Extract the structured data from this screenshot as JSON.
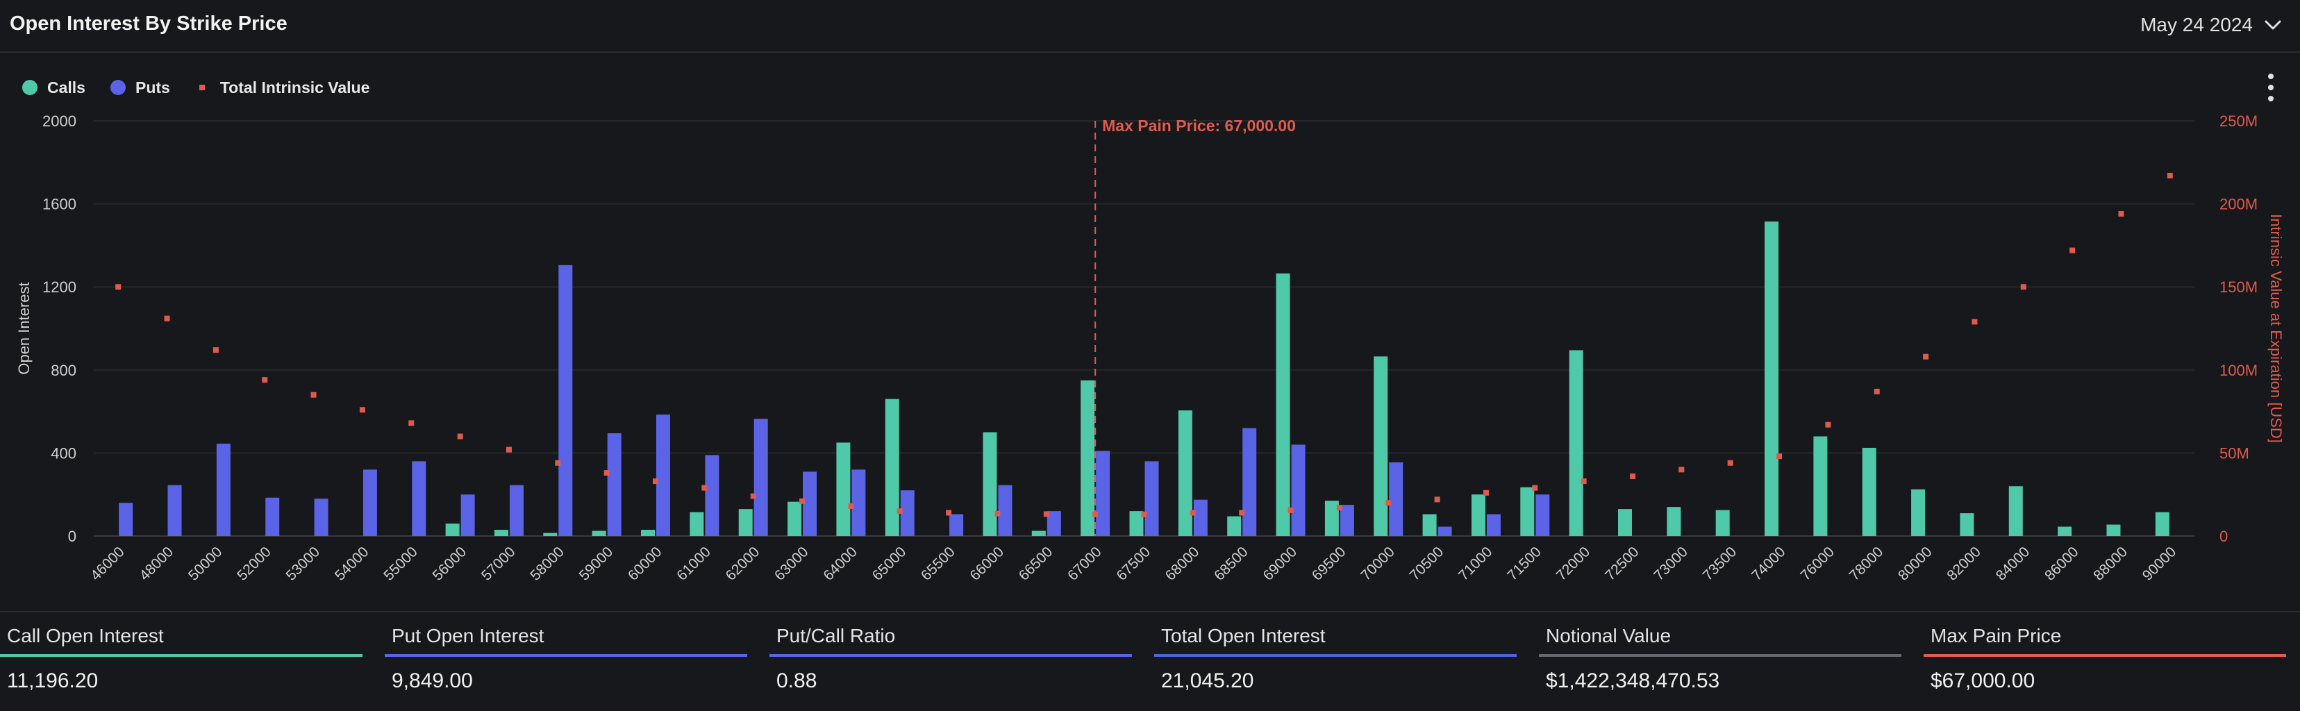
{
  "header": {
    "title": "Open Interest By Strike Price",
    "date": "May 24 2024"
  },
  "legend": [
    {
      "label": "Calls",
      "color": "#4fc9a8",
      "marker": "circle"
    },
    {
      "label": "Puts",
      "color": "#5b63e6",
      "marker": "circle"
    },
    {
      "label": "Total Intrinsic Value",
      "color": "#e05a50",
      "marker": "square"
    }
  ],
  "chart_data": {
    "type": "bar",
    "ylabel": "Open Interest",
    "y2label": "Intrinsic Value at Expiration [USD]",
    "ylim": [
      0,
      2000
    ],
    "yticks": [
      "0",
      "400",
      "800",
      "1200",
      "1600",
      "2000"
    ],
    "y2lim": [
      0,
      250000000
    ],
    "y2ticks": [
      "0",
      "50M",
      "100M",
      "150M",
      "200M",
      "250M"
    ],
    "grid": true,
    "legend": "top-left",
    "categories": [
      "46000",
      "48000",
      "50000",
      "52000",
      "53000",
      "54000",
      "55000",
      "56000",
      "57000",
      "58000",
      "59000",
      "60000",
      "61000",
      "62000",
      "63000",
      "64000",
      "65000",
      "65500",
      "66000",
      "66500",
      "67000",
      "67500",
      "68000",
      "68500",
      "69000",
      "69500",
      "70000",
      "70500",
      "71000",
      "71500",
      "72000",
      "72500",
      "73000",
      "73500",
      "74000",
      "76000",
      "78000",
      "80000",
      "82000",
      "84000",
      "86000",
      "88000",
      "90000"
    ],
    "series": [
      {
        "name": "Calls",
        "type": "bar",
        "color": "#4fc9a8",
        "values": [
          0,
          0,
          0,
          0,
          0,
          0,
          0,
          60,
          30,
          15,
          25,
          30,
          115,
          130,
          165,
          450,
          660,
          0,
          500,
          25,
          750,
          120,
          605,
          95,
          1265,
          170,
          865,
          105,
          200,
          235,
          895,
          130,
          140,
          125,
          1515,
          480,
          425,
          225,
          110,
          240,
          45,
          55,
          115
        ]
      },
      {
        "name": "Puts",
        "type": "bar",
        "color": "#5b63e6",
        "values": [
          160,
          245,
          445,
          185,
          180,
          320,
          360,
          200,
          245,
          1305,
          495,
          585,
          390,
          565,
          310,
          320,
          220,
          105,
          245,
          120,
          410,
          360,
          175,
          520,
          440,
          150,
          355,
          45,
          105,
          200,
          0,
          0,
          0,
          0,
          0,
          0,
          0,
          0,
          0,
          0,
          0,
          0,
          0
        ]
      },
      {
        "name": "Total Intrinsic Value",
        "type": "scatter",
        "color": "#e05a50",
        "values": [
          150000000,
          131000000,
          112000000,
          94000000,
          85000000,
          76000000,
          68000000,
          60000000,
          52000000,
          44000000,
          38000000,
          33000000,
          29000000,
          24000000,
          21000000,
          18000000,
          15000000,
          14000000,
          13500000,
          13200000,
          13000000,
          13000000,
          14000000,
          14000000,
          15500000,
          17000000,
          20000000,
          22000000,
          26000000,
          29000000,
          33000000,
          36000000,
          40000000,
          44000000,
          48000000,
          67000000,
          87000000,
          108000000,
          129000000,
          150000000,
          172000000,
          194000000,
          217000000
        ]
      }
    ],
    "annotation": {
      "label": "Max Pain Price: 67,000.00",
      "x": "67000"
    }
  },
  "stats": [
    {
      "label": "Call Open Interest",
      "value": "11,196.20",
      "color": "#4fc9a8"
    },
    {
      "label": "Put Open Interest",
      "value": "9,849.00",
      "color": "#5b63e6"
    },
    {
      "label": "Put/Call Ratio",
      "value": "0.88",
      "color": "#5b63e6"
    },
    {
      "label": "Total Open Interest",
      "value": "21,045.20",
      "color": "#4a66d8"
    },
    {
      "label": "Notional Value",
      "value": "$1,422,348,470.53",
      "color": "#666870"
    },
    {
      "label": "Max Pain Price",
      "value": "$67,000.00",
      "color": "#e05a50"
    }
  ]
}
